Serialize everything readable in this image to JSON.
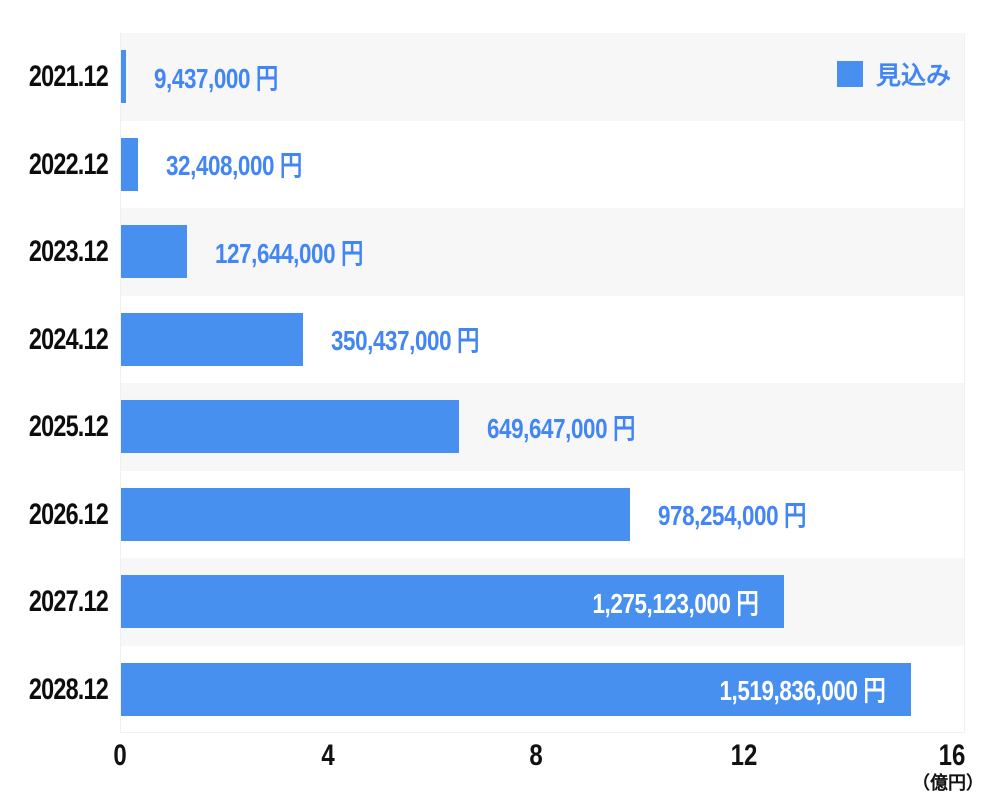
{
  "legend": {
    "label": "見込み"
  },
  "axis": {
    "ticks": [
      0,
      4,
      8,
      12,
      16
    ],
    "unit_label": "（億円）"
  },
  "colors": {
    "bar": "#4890F0",
    "value_text": "#4285F4",
    "inside_value_text": "#ffffff",
    "row_band": "#f7f7f7",
    "category_text": "#0d0d0d",
    "tick_text": "#111111"
  },
  "chart_data": {
    "type": "bar",
    "orientation": "horizontal",
    "title": "",
    "xlabel": "（億円）",
    "ylabel": "",
    "categories": [
      "2021.12",
      "2022.12",
      "2023.12",
      "2024.12",
      "2025.12",
      "2026.12",
      "2027.12",
      "2028.12"
    ],
    "series": [
      {
        "name": "見込み",
        "values": [
          9437000,
          32408000,
          127644000,
          350437000,
          649647000,
          978254000,
          1275123000,
          1519836000
        ]
      }
    ],
    "value_labels": [
      "9,437,000 円",
      "32,408,000 円",
      "127,644,000 円",
      "350,437,000 円",
      "649,647,000 円",
      "978,254,000 円",
      "1,275,123,000 円",
      "1,519,836,000 円"
    ],
    "value_label_positions": [
      "outside",
      "outside",
      "outside",
      "outside",
      "outside",
      "outside",
      "inside",
      "inside"
    ],
    "xlim": [
      0,
      16.25
    ],
    "xticks": [
      0,
      4,
      8,
      12,
      16
    ],
    "x_unit_divisor": 100000000,
    "grid": false,
    "legend_position": "top-right",
    "row_striping": "odd-rows-shaded"
  }
}
